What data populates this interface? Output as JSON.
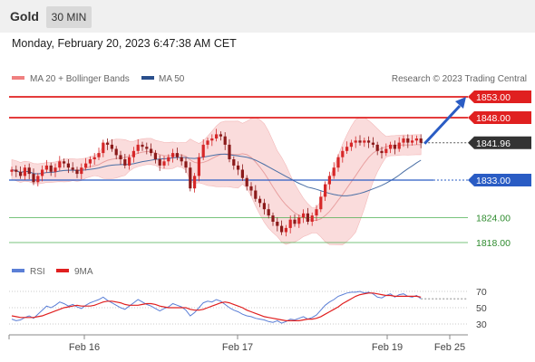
{
  "header": {
    "title": "Gold",
    "timeframe": "30 MIN"
  },
  "datetime": "Monday, February 20, 2023 6:47:38 AM CET",
  "legend": {
    "ma_bollinger": "MA 20 + Bollinger Bands",
    "ma50": "MA 50",
    "copyright": "Research © 2023 Trading Central"
  },
  "rsi_legend": {
    "rsi": "RSI",
    "ma": "9MA"
  },
  "colors": {
    "up": "#d62728",
    "down": "#8b1a1a",
    "bands": "#fadcdc",
    "resistance": "#e02020",
    "support_blue": "#2a5cc4",
    "support_green": "#2e8b2e",
    "current_tag": "#333333",
    "ma50_line": "#4a6fa5",
    "ma20_line": "#e8a0a0",
    "rsi_line": "#5b7fd6",
    "rsi_ma": "#e02020"
  },
  "chart_data": [
    {
      "type": "candlestick",
      "symbol": "Gold",
      "interval": "30 MIN",
      "x_ticks": [
        "Feb 16",
        "Feb 17",
        "Feb 19",
        "Feb 25"
      ],
      "y_range": [
        1814,
        1860
      ],
      "levels": [
        {
          "value": 1853.0,
          "label": "1853.00",
          "kind": "resistance"
        },
        {
          "value": 1848.0,
          "label": "1848.00",
          "kind": "resistance"
        },
        {
          "value": 1841.96,
          "label": "1841.96",
          "kind": "current"
        },
        {
          "value": 1833.0,
          "label": "1833.00",
          "kind": "pivot"
        },
        {
          "value": 1824.0,
          "label": "1824.00",
          "kind": "support"
        },
        {
          "value": 1818.0,
          "label": "1818.00",
          "kind": "support"
        }
      ],
      "close": [
        1835.5,
        1835.0,
        1834.0,
        1836.0,
        1834.5,
        1832.5,
        1834.0,
        1835.5,
        1836.5,
        1835.0,
        1836.0,
        1837.5,
        1837.0,
        1836.0,
        1835.5,
        1834.5,
        1836.0,
        1837.0,
        1838.0,
        1838.5,
        1839.5,
        1842.0,
        1841.5,
        1840.5,
        1839.0,
        1838.0,
        1836.5,
        1838.5,
        1840.0,
        1841.5,
        1841.0,
        1840.5,
        1839.5,
        1838.0,
        1836.5,
        1837.5,
        1838.5,
        1839.5,
        1838.5,
        1837.5,
        1836.0,
        1831.0,
        1834.0,
        1838.5,
        1841.5,
        1842.5,
        1843.0,
        1844.0,
        1843.5,
        1841.5,
        1838.0,
        1836.5,
        1835.5,
        1833.5,
        1831.5,
        1830.5,
        1828.5,
        1827.5,
        1826.0,
        1824.5,
        1823.0,
        1822.0,
        1820.5,
        1821.5,
        1823.5,
        1822.5,
        1824.0,
        1825.0,
        1823.0,
        1824.5,
        1826.0,
        1829.0,
        1832.0,
        1834.0,
        1836.0,
        1838.5,
        1840.0,
        1841.0,
        1842.0,
        1842.5,
        1842.0,
        1842.5,
        1842.0,
        1841.5,
        1840.0,
        1839.5,
        1840.5,
        1841.5,
        1840.5,
        1842.0,
        1843.0,
        1842.0,
        1842.5,
        1843.0,
        1841.96
      ],
      "series": [
        {
          "name": "MA 20 + Bollinger Bands"
        },
        {
          "name": "MA 50"
        }
      ]
    },
    {
      "type": "line",
      "series": [
        {
          "name": "RSI",
          "values": [
            36,
            34,
            35,
            38,
            40,
            37,
            42,
            47,
            52,
            50,
            53,
            57,
            55,
            52,
            54,
            51,
            49,
            53,
            56,
            58,
            60,
            63,
            59,
            56,
            53,
            50,
            48,
            52,
            56,
            60,
            57,
            54,
            52,
            49,
            46,
            49,
            51,
            55,
            53,
            51,
            47,
            40,
            44,
            50,
            56,
            58,
            57,
            60,
            58,
            54,
            50,
            47,
            45,
            42,
            40,
            39,
            37,
            36,
            35,
            33,
            32,
            34,
            31,
            33,
            36,
            35,
            37,
            39,
            36,
            38,
            41,
            47,
            53,
            57,
            60,
            64,
            66,
            68,
            69,
            69,
            70,
            68,
            69,
            67,
            63,
            62,
            65,
            67,
            63,
            66,
            67,
            64,
            63,
            65,
            61
          ]
        },
        {
          "name": "9MA",
          "values": [
            40,
            39,
            38,
            38,
            38,
            38,
            39,
            40,
            42,
            44,
            46,
            48,
            50,
            51,
            52,
            53,
            52,
            52,
            52,
            53,
            55,
            57,
            58,
            58,
            57,
            56,
            54,
            53,
            53,
            53,
            54,
            55,
            55,
            54,
            52,
            51,
            50,
            50,
            50,
            50,
            50,
            48,
            47,
            47,
            48,
            50,
            52,
            54,
            56,
            57,
            56,
            54,
            52,
            50,
            47,
            45,
            43,
            41,
            39,
            38,
            37,
            36,
            35,
            34,
            34,
            34,
            34,
            35,
            36,
            36,
            37,
            39,
            42,
            45,
            48,
            51,
            55,
            58,
            61,
            64,
            66,
            67,
            68,
            68,
            67,
            66,
            65,
            65,
            64,
            64,
            64,
            64,
            64,
            64,
            63
          ]
        }
      ],
      "y_ticks": [
        70,
        50,
        30
      ]
    }
  ]
}
